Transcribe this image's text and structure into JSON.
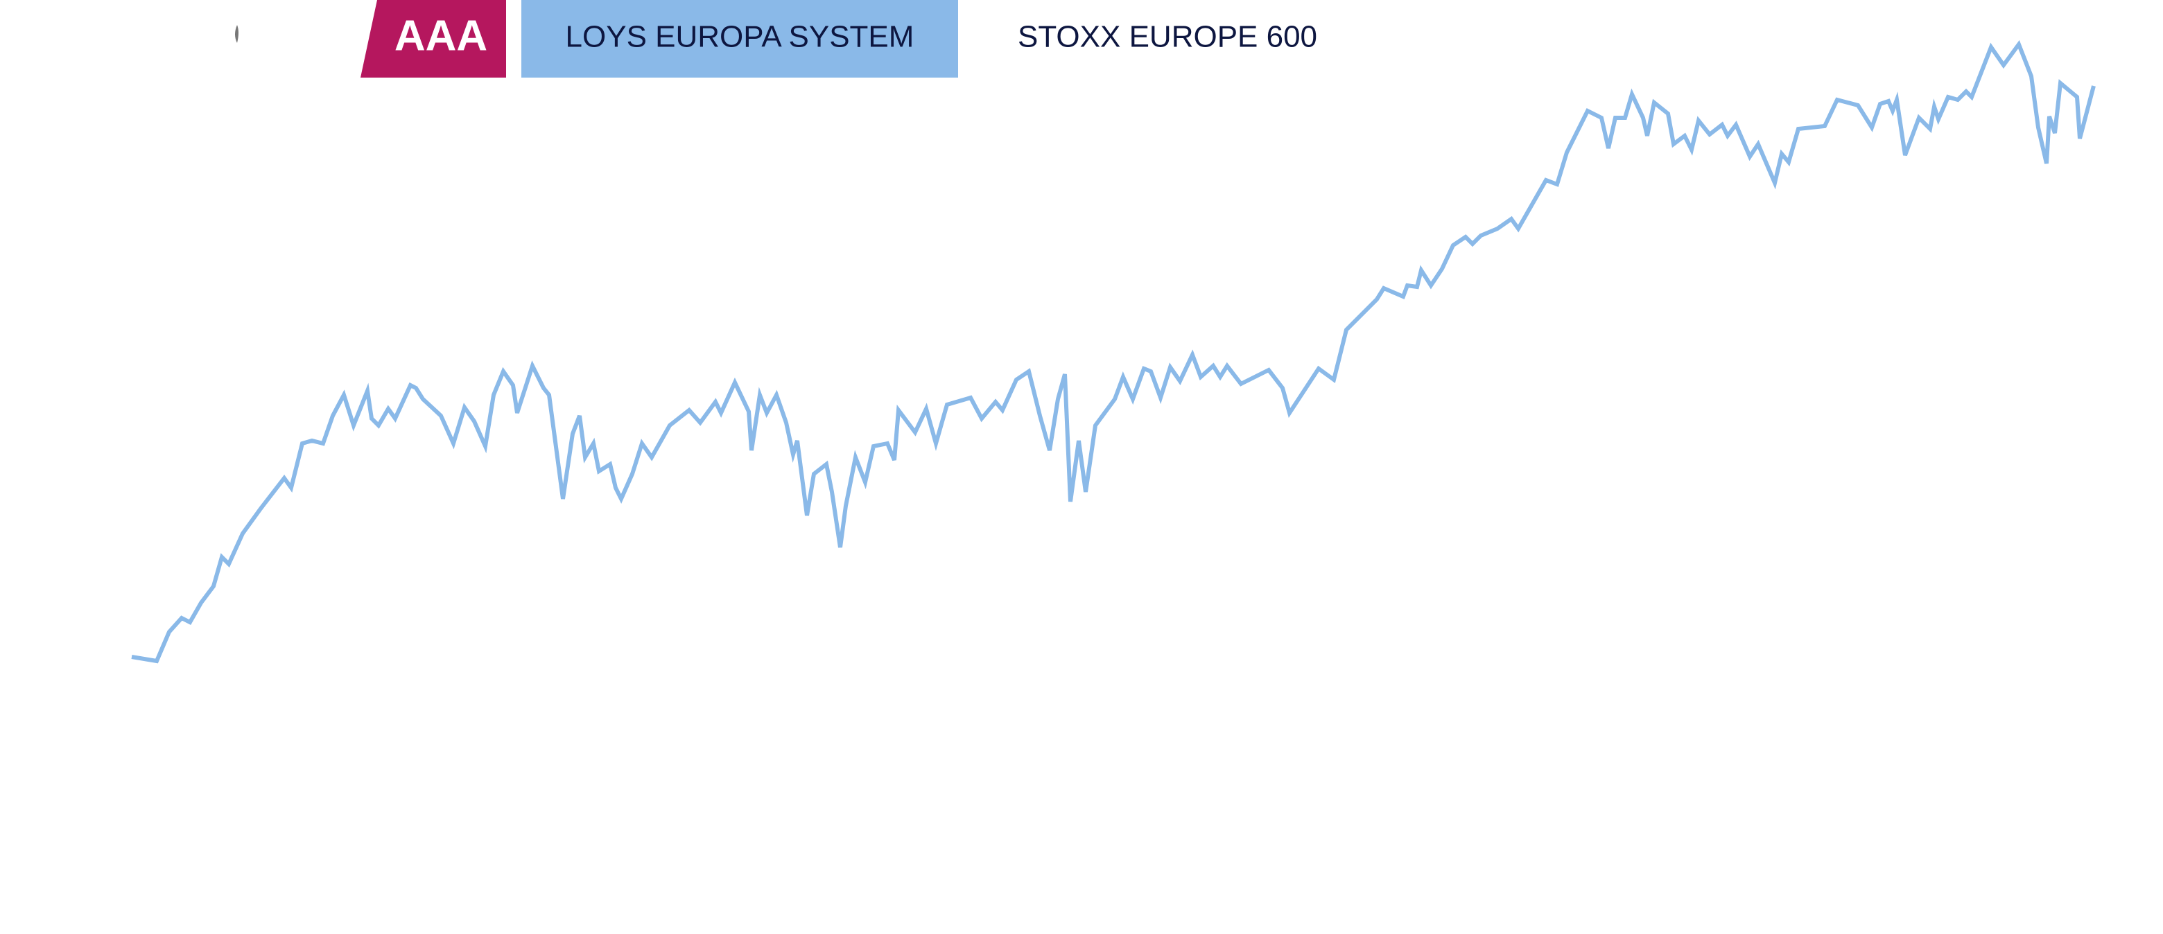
{
  "chart_data": {
    "type": "line",
    "badge": "AAA",
    "comparison": "STOXX EUROPE 600",
    "badge_color": "#b5175e",
    "active_color": "#8ab9e8",
    "xlim": [
      0,
      1560
    ],
    "ylim": [
      0,
      674
    ],
    "x": [
      95,
      113,
      122,
      131,
      137,
      145,
      154,
      160,
      165,
      175,
      188,
      205,
      210,
      218,
      225,
      233,
      240,
      248,
      255,
      265,
      268,
      273,
      280,
      285,
      296,
      300,
      305,
      318,
      327,
      335,
      342,
      350,
      356,
      363,
      370,
      373,
      384,
      392,
      396,
      406,
      413,
      418,
      422,
      428,
      432,
      440,
      444,
      448,
      456,
      463,
      470,
      483,
      497,
      505,
      516,
      520,
      530,
      540,
      542,
      548,
      553,
      560,
      567,
      572,
      575,
      582,
      587,
      596,
      600,
      606,
      610,
      617,
      624,
      630,
      640,
      645,
      648,
      660,
      668,
      675,
      683,
      700,
      708,
      718,
      723,
      733,
      742,
      750,
      757,
      763,
      768,
      772,
      778,
      783,
      790,
      804,
      810,
      817,
      825,
      830,
      837,
      844,
      851,
      860,
      866,
      875,
      880,
      885,
      895,
      915,
      925,
      930,
      951,
      962,
      971,
      993,
      998,
      1012,
      1015,
      1022,
      1025,
      1032,
      1040,
      1048,
      1057,
      1062,
      1068,
      1080,
      1090,
      1095,
      1115,
      1123,
      1130,
      1145,
      1155,
      1160,
      1165,
      1172,
      1177,
      1185,
      1188,
      1193,
      1203,
      1207,
      1215,
      1220,
      1225,
      1233,
      1242,
      1246,
      1252,
      1262,
      1268,
      1280,
      1285,
      1290,
      1297,
      1316,
      1325,
      1340,
      1350,
      1356,
      1362,
      1365,
      1368,
      1374,
      1384,
      1392,
      1395,
      1398,
      1405,
      1412,
      1418,
      1422,
      1436,
      1445,
      1456,
      1465,
      1470,
      1476,
      1478,
      1482,
      1486,
      1498,
      1500,
      1510
    ],
    "series": [
      {
        "name": "LOYS EUROPA SYSTEM",
        "color": "#8ab9e8",
        "values": [
          200,
          197,
          218,
          228,
          225,
          239,
          251,
          272,
          267,
          289,
          307,
          329,
          322,
          354,
          356,
          354,
          374,
          389,
          367,
          392,
          372,
          367,
          379,
          372,
          396,
          394,
          386,
          374,
          354,
          380,
          370,
          352,
          389,
          406,
          396,
          376,
          410,
          394,
          389,
          314,
          361,
          374,
          344,
          354,
          334,
          339,
          322,
          314,
          332,
          354,
          344,
          367,
          378,
          369,
          384,
          376,
          398,
          377,
          349,
          389,
          376,
          389,
          369,
          346,
          356,
          302,
          332,
          339,
          319,
          279,
          309,
          344,
          326,
          352,
          354,
          342,
          378,
          362,
          379,
          354,
          382,
          387,
          372,
          384,
          378,
          400,
          406,
          374,
          349,
          386,
          404,
          312,
          356,
          319,
          367,
          386,
          402,
          386,
          408,
          406,
          387,
          409,
          399,
          418,
          402,
          410,
          402,
          410,
          397,
          407,
          394,
          376,
          408,
          400,
          436,
          458,
          466,
          460,
          468,
          467,
          479,
          468,
          480,
          497,
          503,
          498,
          504,
          509,
          516,
          509,
          544,
          541,
          564,
          594,
          589,
          567,
          589,
          589,
          606,
          589,
          576,
          600,
          592,
          570,
          576,
          566,
          587,
          577,
          584,
          576,
          584,
          561,
          570,
          542,
          563,
          557,
          581,
          583,
          602,
          598,
          582,
          599,
          601,
          594,
          602,
          562,
          589,
          581,
          597,
          588,
          604,
          602,
          608,
          604,
          640,
          627,
          642,
          619,
          582,
          556,
          590,
          578,
          614,
          604,
          574,
          612
        ]
      }
    ]
  }
}
